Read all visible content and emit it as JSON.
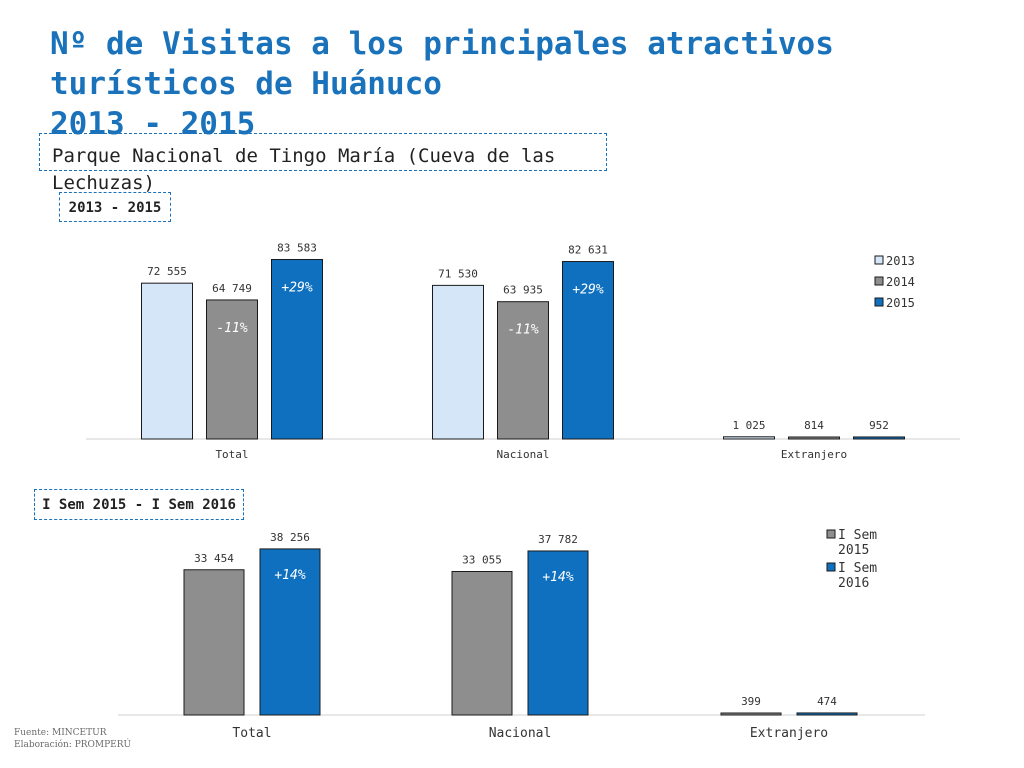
{
  "page": {
    "title_lines": [
      "Nº de Visitas a los principales atractivos",
      "turísticos de Huánuco",
      "2013 - 2015"
    ],
    "subtitle": "Parque Nacional de Tingo María (Cueva de las Lechuzas)",
    "footer": {
      "source": "Fuente: MINCETUR",
      "prepared": "Elaboración: PROMPERÚ"
    }
  },
  "colors": {
    "title": "#1a72bb",
    "c2013": "#d4e6f7",
    "c2014": "#8e8e8e",
    "c2015": "#0f70bf"
  },
  "chart_data": [
    {
      "type": "bar",
      "period_label": "2013 - 2015",
      "categories": [
        "Total",
        "Nacional",
        "Extranjero"
      ],
      "series": [
        {
          "name": "2013",
          "color": "#d4e6f7",
          "values": [
            72555,
            71530,
            1025
          ],
          "labels": [
            "72 555",
            "71 530",
            "1 025"
          ]
        },
        {
          "name": "2014",
          "color": "#8e8e8e",
          "values": [
            64749,
            63935,
            814
          ],
          "labels": [
            "64 749",
            "63 935",
            "814"
          ]
        },
        {
          "name": "2015",
          "color": "#0f70bf",
          "values": [
            83583,
            82631,
            952
          ],
          "labels": [
            "83 583",
            "82 631",
            "952"
          ]
        }
      ],
      "annotations": [
        {
          "category": "Total",
          "series": "2014",
          "text": "-11%"
        },
        {
          "category": "Total",
          "series": "2015",
          "text": "+29%"
        },
        {
          "category": "Nacional",
          "series": "2014",
          "text": "-11%"
        },
        {
          "category": "Nacional",
          "series": "2015",
          "text": "+29%"
        }
      ],
      "ylim": [
        0,
        88000
      ],
      "legend": "right"
    },
    {
      "type": "bar",
      "period_label": "I Sem 2015 - I Sem 2016",
      "categories": [
        "Total",
        "Nacional",
        "Extranjero"
      ],
      "series": [
        {
          "name": "I Sem 2015",
          "color": "#8e8e8e",
          "values": [
            33454,
            33055,
            399
          ],
          "labels": [
            "33 454",
            "33 055",
            "399"
          ]
        },
        {
          "name": "I Sem 2016",
          "color": "#0f70bf",
          "values": [
            38256,
            37782,
            474
          ],
          "labels": [
            "38 256",
            "37 782",
            "474"
          ]
        }
      ],
      "annotations": [
        {
          "category": "Total",
          "series": "I Sem 2016",
          "text": "+14%"
        },
        {
          "category": "Nacional",
          "series": "I Sem 2016",
          "text": "+14%"
        }
      ],
      "ylim": [
        0,
        41000
      ],
      "legend": "top-right"
    }
  ]
}
